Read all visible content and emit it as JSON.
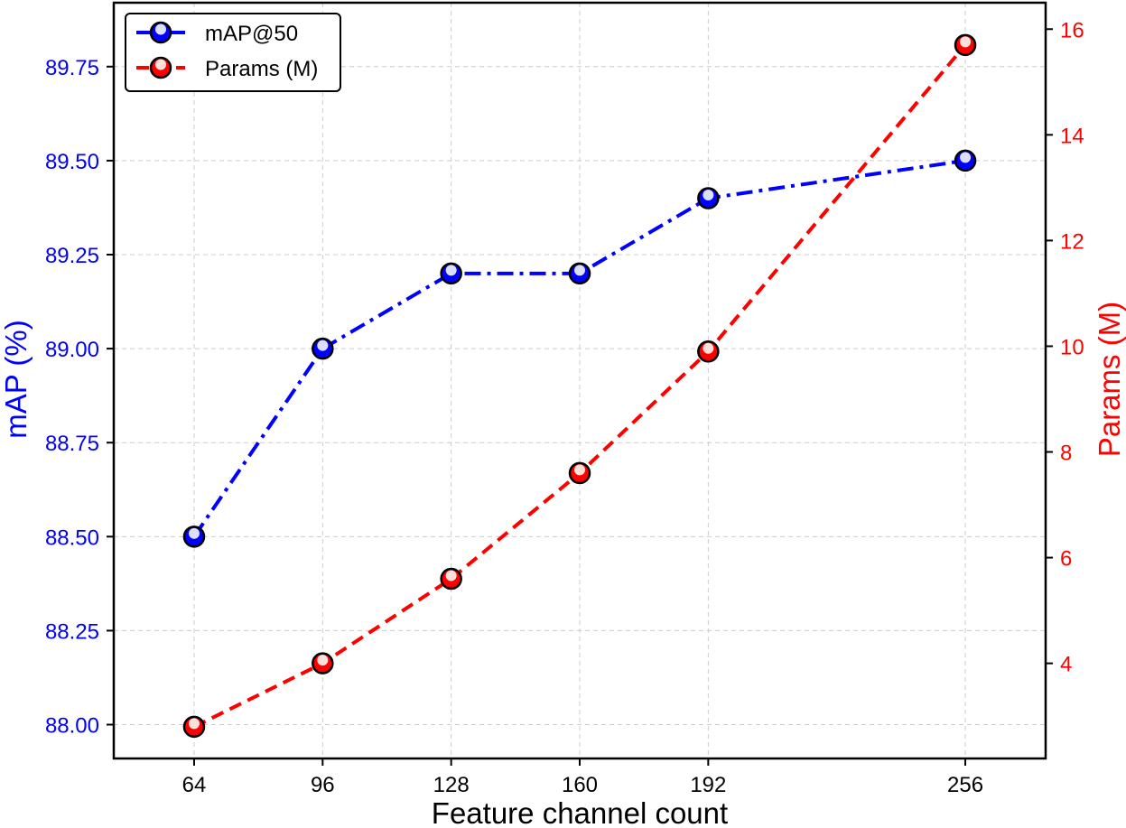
{
  "chart_data": {
    "type": "line",
    "title": "",
    "xlabel": "Feature channel count",
    "ylabel": "mAP (%)",
    "y2label": "Params (M)",
    "x": [
      64,
      96,
      128,
      160,
      192,
      256
    ],
    "x_tick_labels": [
      "64",
      "96",
      "128",
      "160",
      "192",
      "256"
    ],
    "y_ticks": [
      "88.00",
      "88.25",
      "88.50",
      "88.75",
      "89.00",
      "89.25",
      "89.50",
      "89.75"
    ],
    "y2_ticks": [
      "4",
      "6",
      "8",
      "10",
      "12",
      "14",
      "16"
    ],
    "ylim": [
      87.91,
      89.92
    ],
    "y2lim": [
      2.2,
      16.5
    ],
    "xlim": [
      44,
      276
    ],
    "grid": true,
    "legend_position": "upper left",
    "series": [
      {
        "name": "mAP@50",
        "axis": "left",
        "color": "#0000ff",
        "linestyle": "dash-dot",
        "values": [
          88.5,
          89.0,
          89.2,
          89.2,
          89.4,
          89.5
        ]
      },
      {
        "name": "Params (M)",
        "axis": "right",
        "color": "#ff0000",
        "linestyle": "dashed",
        "values": [
          2.8,
          4.0,
          5.6,
          7.6,
          9.9,
          15.7
        ]
      }
    ]
  }
}
